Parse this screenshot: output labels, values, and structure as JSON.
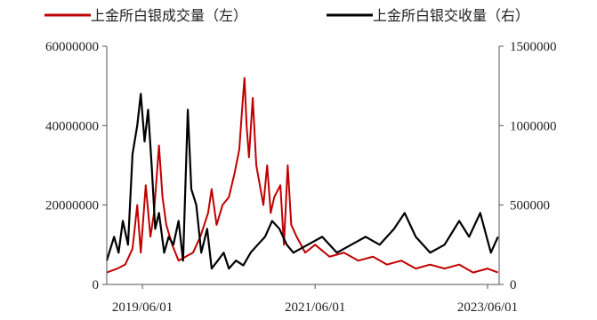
{
  "chart_data": {
    "type": "line",
    "title": "",
    "legend": {
      "placement": "top",
      "items": [
        {
          "label": "上金所白银成交量（左）",
          "color": "#c00000"
        },
        {
          "label": "上金所白银交收量（右）",
          "color": "#000000"
        }
      ]
    },
    "x_axis": {
      "type": "date",
      "range": [
        "2019-01-01",
        "2023-07-20"
      ],
      "tick_labels": [
        "2019/06/01",
        "2021/06/01",
        "2023/06/01"
      ],
      "tick_values": [
        "2019-06-01",
        "2021-06-01",
        "2023-06-01"
      ]
    },
    "y_left": {
      "range": [
        0,
        60000000
      ],
      "ticks": [
        0,
        20000000,
        40000000,
        60000000
      ],
      "tick_labels": [
        "0",
        "20000000",
        "40000000",
        "60000000"
      ]
    },
    "y_right": {
      "range": [
        0,
        1500000
      ],
      "ticks": [
        0,
        500000,
        1000000,
        1500000
      ],
      "tick_labels": [
        "0",
        "500000",
        "1000000",
        "1500000"
      ]
    },
    "grid": false,
    "series": [
      {
        "name": "上金所白银成交量（左）",
        "axis": "left",
        "color": "#c00000",
        "points": [
          [
            "2019-01-01",
            3000000
          ],
          [
            "2019-02-15",
            4000000
          ],
          [
            "2019-03-20",
            5000000
          ],
          [
            "2019-04-20",
            9000000
          ],
          [
            "2019-05-10",
            20000000
          ],
          [
            "2019-05-25",
            8000000
          ],
          [
            "2019-06-15",
            25000000
          ],
          [
            "2019-07-05",
            12000000
          ],
          [
            "2019-07-20",
            18000000
          ],
          [
            "2019-08-10",
            35000000
          ],
          [
            "2019-08-25",
            22000000
          ],
          [
            "2019-09-10",
            15000000
          ],
          [
            "2019-10-05",
            10000000
          ],
          [
            "2019-11-01",
            6000000
          ],
          [
            "2019-12-01",
            7000000
          ],
          [
            "2020-01-01",
            8000000
          ],
          [
            "2020-02-01",
            12000000
          ],
          [
            "2020-03-05",
            18000000
          ],
          [
            "2020-03-20",
            24000000
          ],
          [
            "2020-04-10",
            15000000
          ],
          [
            "2020-05-05",
            20000000
          ],
          [
            "2020-06-01",
            22000000
          ],
          [
            "2020-06-25",
            28000000
          ],
          [
            "2020-07-15",
            34000000
          ],
          [
            "2020-07-28",
            45000000
          ],
          [
            "2020-08-06",
            52000000
          ],
          [
            "2020-08-15",
            40000000
          ],
          [
            "2020-08-25",
            32000000
          ],
          [
            "2020-09-10",
            47000000
          ],
          [
            "2020-09-25",
            30000000
          ],
          [
            "2020-10-10",
            25000000
          ],
          [
            "2020-10-25",
            20000000
          ],
          [
            "2020-11-10",
            30000000
          ],
          [
            "2020-11-25",
            18000000
          ],
          [
            "2020-12-10",
            22000000
          ],
          [
            "2021-01-05",
            25000000
          ],
          [
            "2021-01-20",
            10000000
          ],
          [
            "2021-02-05",
            30000000
          ],
          [
            "2021-02-20",
            15000000
          ],
          [
            "2021-03-15",
            12000000
          ],
          [
            "2021-04-20",
            8000000
          ],
          [
            "2021-06-01",
            10000000
          ],
          [
            "2021-08-01",
            7000000
          ],
          [
            "2021-10-01",
            8000000
          ],
          [
            "2021-12-01",
            6000000
          ],
          [
            "2022-02-01",
            7000000
          ],
          [
            "2022-04-01",
            5000000
          ],
          [
            "2022-06-01",
            6000000
          ],
          [
            "2022-08-01",
            4000000
          ],
          [
            "2022-10-01",
            5000000
          ],
          [
            "2022-12-01",
            4000000
          ],
          [
            "2023-02-01",
            5000000
          ],
          [
            "2023-04-01",
            3000000
          ],
          [
            "2023-06-01",
            4000000
          ],
          [
            "2023-07-15",
            3000000
          ]
        ]
      },
      {
        "name": "上金所白银交收量（右）",
        "axis": "right",
        "color": "#000000",
        "points": [
          [
            "2019-01-01",
            150000
          ],
          [
            "2019-02-01",
            300000
          ],
          [
            "2019-02-20",
            200000
          ],
          [
            "2019-03-10",
            400000
          ],
          [
            "2019-04-01",
            250000
          ],
          [
            "2019-04-20",
            820000
          ],
          [
            "2019-05-10",
            1000000
          ],
          [
            "2019-05-25",
            1200000
          ],
          [
            "2019-06-10",
            900000
          ],
          [
            "2019-06-25",
            1100000
          ],
          [
            "2019-07-10",
            750000
          ],
          [
            "2019-07-25",
            350000
          ],
          [
            "2019-08-10",
            450000
          ],
          [
            "2019-09-01",
            200000
          ],
          [
            "2019-09-20",
            300000
          ],
          [
            "2019-10-10",
            250000
          ],
          [
            "2019-11-01",
            400000
          ],
          [
            "2019-11-20",
            150000
          ],
          [
            "2019-12-10",
            1100000
          ],
          [
            "2019-12-25",
            600000
          ],
          [
            "2020-01-15",
            500000
          ],
          [
            "2020-02-05",
            200000
          ],
          [
            "2020-03-01",
            350000
          ],
          [
            "2020-03-20",
            100000
          ],
          [
            "2020-04-15",
            150000
          ],
          [
            "2020-05-10",
            200000
          ],
          [
            "2020-06-01",
            100000
          ],
          [
            "2020-07-01",
            150000
          ],
          [
            "2020-08-01",
            120000
          ],
          [
            "2020-09-01",
            200000
          ],
          [
            "2020-10-01",
            250000
          ],
          [
            "2020-11-01",
            300000
          ],
          [
            "2020-12-01",
            400000
          ],
          [
            "2021-01-01",
            350000
          ],
          [
            "2021-02-01",
            250000
          ],
          [
            "2021-03-01",
            200000
          ],
          [
            "2021-05-01",
            250000
          ],
          [
            "2021-07-01",
            300000
          ],
          [
            "2021-09-01",
            200000
          ],
          [
            "2021-11-01",
            250000
          ],
          [
            "2022-01-01",
            300000
          ],
          [
            "2022-03-01",
            250000
          ],
          [
            "2022-05-01",
            350000
          ],
          [
            "2022-06-15",
            450000
          ],
          [
            "2022-08-01",
            300000
          ],
          [
            "2022-10-01",
            200000
          ],
          [
            "2022-12-01",
            250000
          ],
          [
            "2023-02-01",
            400000
          ],
          [
            "2023-03-15",
            300000
          ],
          [
            "2023-05-01",
            450000
          ],
          [
            "2023-06-15",
            200000
          ],
          [
            "2023-07-15",
            300000
          ]
        ]
      }
    ]
  }
}
